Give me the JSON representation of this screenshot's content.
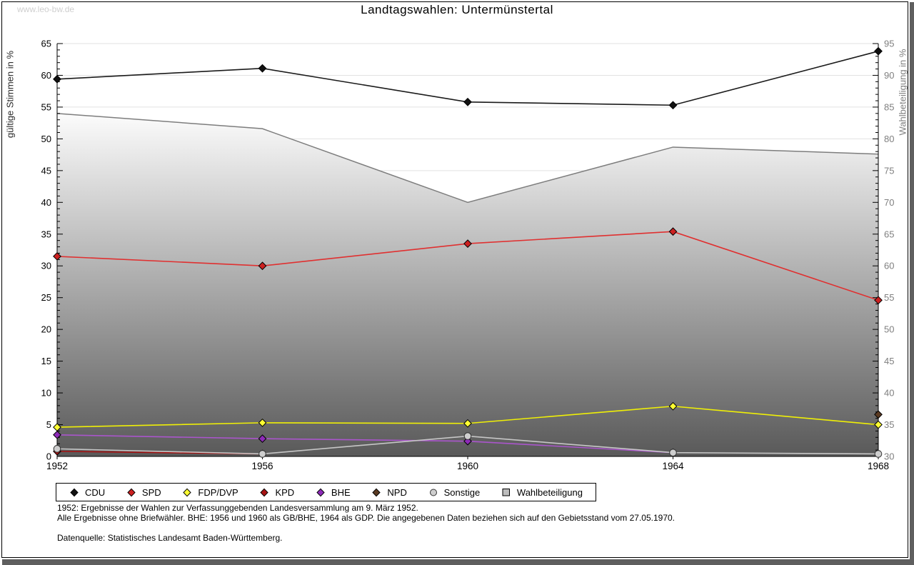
{
  "watermark": "www.leo-bw.de",
  "title": "Landtagswahlen: Untermünstertal",
  "axes": {
    "left_label": "gültige Stimmen in %",
    "right_label": "Wahlbeteiligung in %",
    "left_min": 0,
    "left_max": 65,
    "tick_step": 5,
    "minor_step": 1,
    "right_min": 30,
    "right_max": 95,
    "left_tick_labels": [
      "0",
      "5",
      "10",
      "15",
      "20",
      "25",
      "30",
      "35",
      "40",
      "45",
      "50",
      "55",
      "60",
      "65"
    ],
    "right_tick_labels": [
      "30",
      "35",
      "40",
      "45",
      "50",
      "55",
      "60",
      "65",
      "70",
      "75",
      "80",
      "85",
      "90",
      "95"
    ],
    "x_tick_labels": [
      "1952",
      "1956",
      "1960",
      "1964",
      "1968"
    ],
    "left_label_color": "#000000",
    "right_label_color": "#7f7f7f",
    "gridline_color": "#e2e2e2"
  },
  "chart_data": {
    "type": "line",
    "title": "Landtagswahlen: Untermünstertal",
    "xlabel": "",
    "ylabel_left": "gültige Stimmen in %",
    "ylabel_right": "Wahlbeteiligung in %",
    "x": [
      1952,
      1956,
      1960,
      1964,
      1968
    ],
    "ylim_left": [
      0,
      65
    ],
    "ylim_right": [
      30,
      95
    ],
    "grid": "horizontal",
    "legend_position": "bottom",
    "series": [
      {
        "name": "CDU",
        "axis": "left",
        "style": "line",
        "marker": "diamond",
        "color": "#1a1a1a",
        "marker_color": "#111111",
        "values": [
          59.4,
          61.1,
          55.8,
          55.3,
          63.8
        ]
      },
      {
        "name": "SPD",
        "axis": "left",
        "style": "line",
        "marker": "diamond",
        "color": "#e03030",
        "marker_color": "#cc2020",
        "values": [
          31.5,
          30.0,
          33.5,
          35.4,
          24.6
        ]
      },
      {
        "name": "FDP/DVP",
        "axis": "left",
        "style": "line",
        "marker": "diamond",
        "color": "#efef06",
        "marker_color": "#ffff33",
        "values": [
          4.6,
          5.3,
          5.2,
          7.9,
          5.0
        ]
      },
      {
        "name": "KPD",
        "axis": "left",
        "style": "line",
        "marker": "diamond",
        "color": "#a31212",
        "marker_color": "#a81414",
        "values": [
          0.8,
          0.4,
          null,
          null,
          null
        ]
      },
      {
        "name": "BHE",
        "axis": "left",
        "style": "line",
        "marker": "diamond",
        "color": "#aa55cc",
        "marker_color": "#8e2bb8",
        "values": [
          3.4,
          2.8,
          2.4,
          0.6,
          null
        ]
      },
      {
        "name": "NPD",
        "axis": "left",
        "style": "line",
        "marker": "diamond",
        "color": "#5a3a22",
        "marker_color": "#5a3a22",
        "values": [
          null,
          null,
          null,
          null,
          6.6
        ]
      },
      {
        "name": "Sonstige",
        "axis": "left",
        "style": "line",
        "marker": "circle",
        "color": "#c6c6c6",
        "marker_color": "#cecece",
        "values": [
          1.2,
          0.4,
          3.2,
          0.6,
          0.4
        ]
      },
      {
        "name": "Wahlbeteiligung",
        "axis": "right",
        "style": "area",
        "marker": "square",
        "color": "#7d7d7d",
        "marker_color": "#bdbdbd",
        "area_gradient": [
          "#fcfcfc",
          "#595959"
        ],
        "values": [
          84.0,
          81.6,
          70.0,
          78.7,
          77.6
        ]
      }
    ]
  },
  "footnotes": {
    "line1": "1952: Ergebnisse der Wahlen zur Verfassunggebenden Landesversammlung am 9. März 1952.",
    "line2": "Alle Ergebnisse ohne Briefwähler. BHE: 1956 und 1960 als GB/BHE, 1964 als GDP. Die angegebenen Daten beziehen sich auf den Gebietsstand vom 27.05.1970.",
    "source": "Datenquelle: Statistisches Landesamt Baden-Württemberg."
  }
}
